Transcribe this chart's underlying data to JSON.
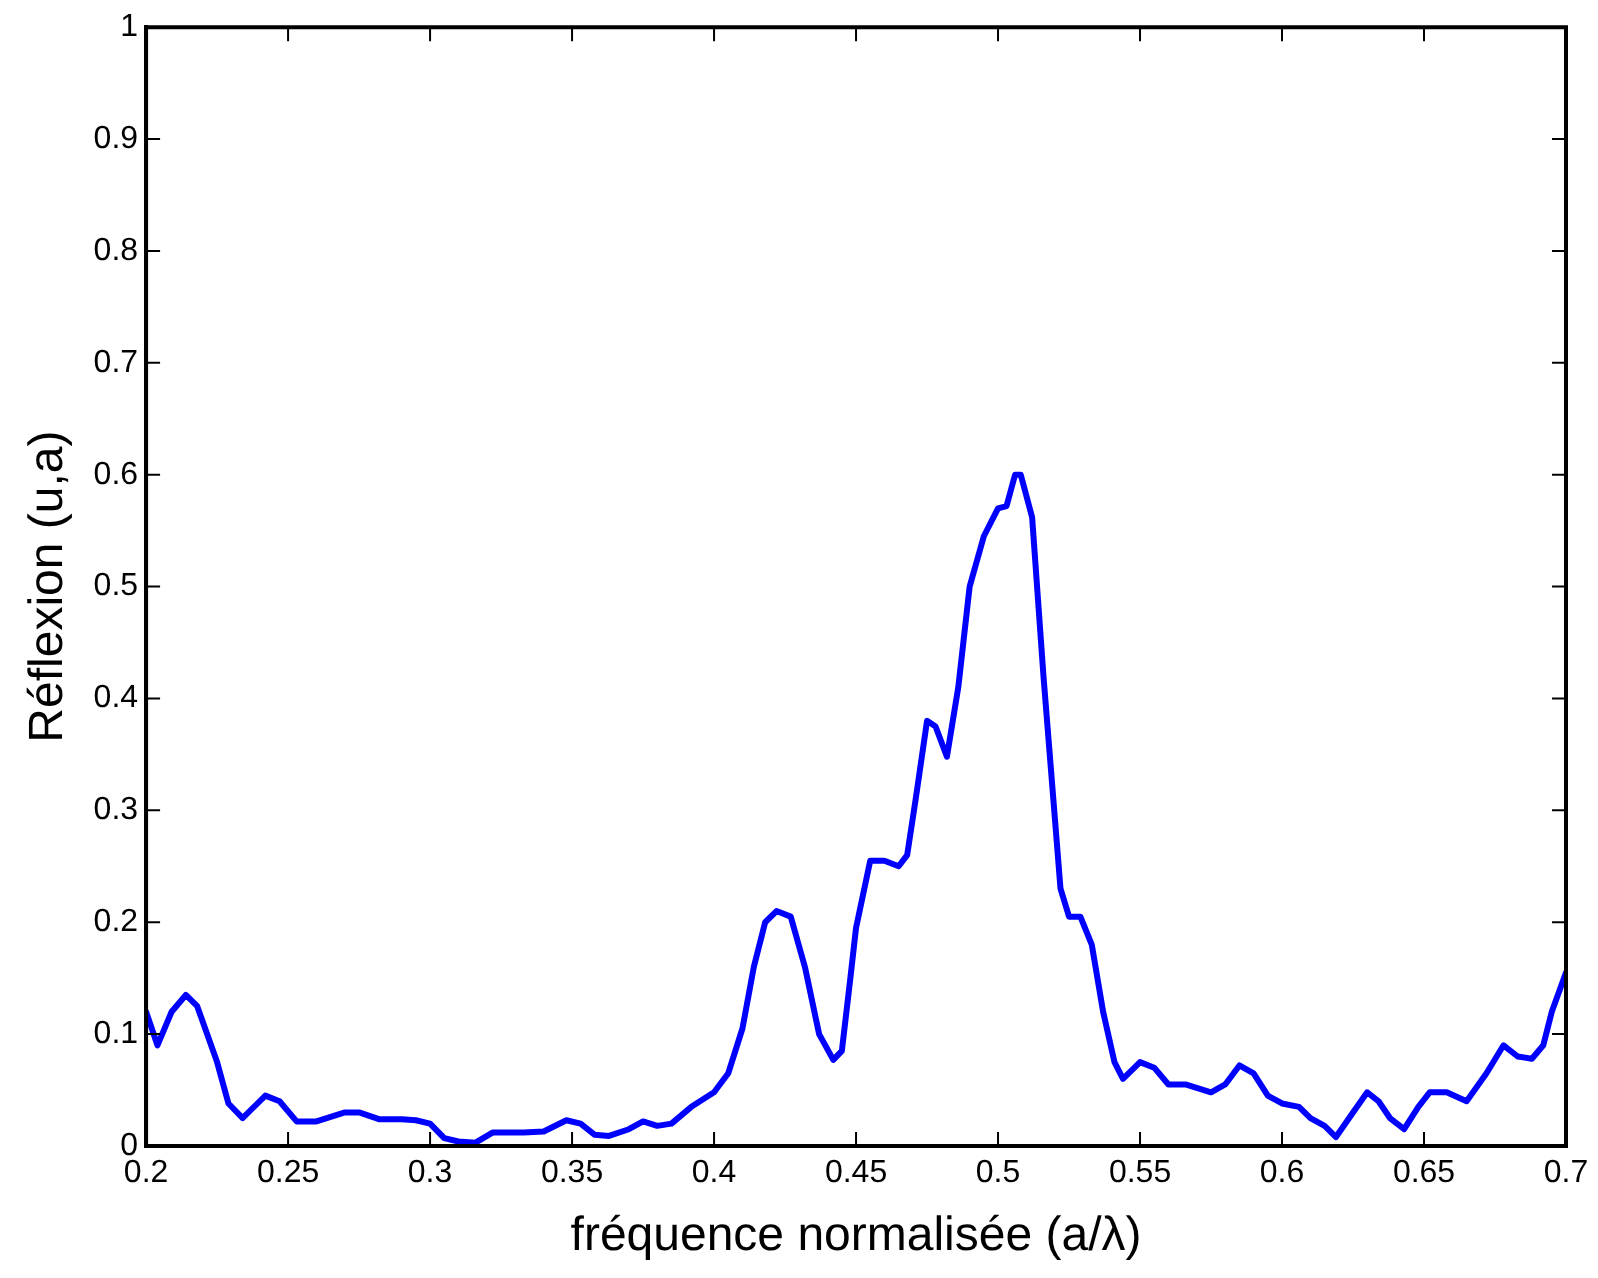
{
  "chart_data": {
    "type": "line",
    "xlabel": "fréquence normalisée (a/λ)",
    "ylabel": "Réflexion (u,a)",
    "xlim": [
      0.2,
      0.7
    ],
    "xticks": [
      0.2,
      0.25,
      0.3,
      0.35,
      0.4,
      0.45,
      0.5,
      0.55,
      0.6,
      0.65,
      0.7
    ],
    "ylim": [
      0,
      1
    ],
    "yticks": [
      0,
      0.1,
      0.2,
      0.3,
      0.4,
      0.5,
      0.6,
      0.7,
      0.8,
      0.9,
      1
    ],
    "grid": false,
    "legend": false,
    "marker": "none",
    "line_style": "solid",
    "x": [
      0.2,
      0.204,
      0.209,
      0.214,
      0.218,
      0.225,
      0.229,
      0.234,
      0.242,
      0.247,
      0.253,
      0.26,
      0.27,
      0.275,
      0.282,
      0.29,
      0.295,
      0.3,
      0.305,
      0.31,
      0.316,
      0.322,
      0.333,
      0.34,
      0.348,
      0.353,
      0.358,
      0.363,
      0.37,
      0.375,
      0.38,
      0.385,
      0.392,
      0.4,
      0.405,
      0.41,
      0.414,
      0.418,
      0.422,
      0.427,
      0.432,
      0.437,
      0.442,
      0.445,
      0.448,
      0.45,
      0.455,
      0.46,
      0.465,
      0.468,
      0.471,
      0.475,
      0.478,
      0.482,
      0.486,
      0.49,
      0.495,
      0.5,
      0.503,
      0.506,
      0.508,
      0.512,
      0.516,
      0.522,
      0.525,
      0.529,
      0.533,
      0.537,
      0.541,
      0.544,
      0.55,
      0.555,
      0.56,
      0.566,
      0.575,
      0.58,
      0.585,
      0.59,
      0.595,
      0.6,
      0.606,
      0.61,
      0.615,
      0.619,
      0.625,
      0.63,
      0.634,
      0.638,
      0.643,
      0.648,
      0.652,
      0.658,
      0.665,
      0.672,
      0.678,
      0.683,
      0.688,
      0.692,
      0.695,
      0.7
    ],
    "series": [
      {
        "color": "#0000ff",
        "values": [
          0.12,
          0.09,
          0.12,
          0.135,
          0.125,
          0.075,
          0.038,
          0.025,
          0.045,
          0.04,
          0.022,
          0.022,
          0.03,
          0.03,
          0.024,
          0.024,
          0.023,
          0.02,
          0.007,
          0.004,
          0.003,
          0.012,
          0.012,
          0.013,
          0.023,
          0.02,
          0.01,
          0.009,
          0.015,
          0.022,
          0.018,
          0.02,
          0.035,
          0.048,
          0.065,
          0.105,
          0.16,
          0.2,
          0.21,
          0.205,
          0.16,
          0.1,
          0.077,
          0.085,
          0.15,
          0.195,
          0.255,
          0.255,
          0.25,
          0.26,
          0.31,
          0.38,
          0.375,
          0.348,
          0.41,
          0.5,
          0.545,
          0.57,
          0.572,
          0.6,
          0.6,
          0.562,
          0.42,
          0.23,
          0.205,
          0.205,
          0.18,
          0.12,
          0.075,
          0.06,
          0.075,
          0.07,
          0.055,
          0.055,
          0.048,
          0.055,
          0.072,
          0.065,
          0.045,
          0.038,
          0.035,
          0.025,
          0.018,
          0.008,
          0.03,
          0.048,
          0.04,
          0.025,
          0.015,
          0.035,
          0.048,
          0.048,
          0.04,
          0.065,
          0.09,
          0.08,
          0.078,
          0.09,
          0.12,
          0.155
        ]
      }
    ]
  }
}
